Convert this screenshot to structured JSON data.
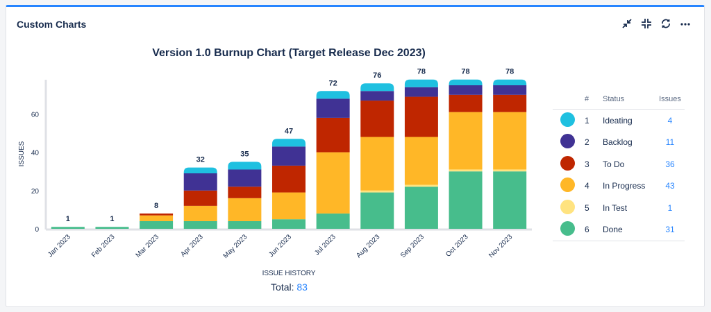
{
  "panel": {
    "title": "Custom Charts",
    "actions": [
      "collapse-icon",
      "minimize-icon",
      "refresh-icon",
      "more-icon"
    ]
  },
  "chart_data": {
    "type": "bar",
    "stacked": true,
    "title": "Version 1.0 Burnup Chart (Target Release Dec 2023)",
    "xlabel": "ISSUE HISTORY",
    "ylabel": "ISSUES",
    "ylim": [
      0,
      78
    ],
    "yticks": [
      0,
      20,
      40,
      60
    ],
    "categories": [
      "Jan 2023",
      "Feb 2023",
      "Mar 2023",
      "Apr 2023",
      "May 2023",
      "Jun 2023",
      "Jul 2023",
      "Aug 2023",
      "Sep 2023",
      "Oct 2023",
      "Nov 2023"
    ],
    "totals": [
      1,
      1,
      8,
      32,
      35,
      47,
      72,
      76,
      78,
      78,
      78
    ],
    "series": [
      {
        "name": "Done",
        "color": "#47bd8c",
        "values": [
          1,
          1,
          4,
          4,
          4,
          5,
          8,
          19,
          22,
          30,
          30
        ]
      },
      {
        "name": "In Test",
        "color": "#ffe380",
        "values": [
          0,
          0,
          0,
          0,
          0,
          0,
          0,
          1,
          1,
          1,
          1
        ]
      },
      {
        "name": "In Progress",
        "color": "#ffb727",
        "values": [
          0,
          0,
          3,
          8,
          12,
          14,
          32,
          28,
          25,
          30,
          30
        ]
      },
      {
        "name": "To Do",
        "color": "#bf2600",
        "values": [
          0,
          0,
          1,
          8,
          6,
          14,
          18,
          19,
          21,
          9,
          9
        ]
      },
      {
        "name": "Backlog",
        "color": "#403294",
        "values": [
          0,
          0,
          0,
          9,
          9,
          10,
          10,
          5,
          5,
          5,
          5
        ]
      },
      {
        "name": "Ideating",
        "color": "#1fc0e0",
        "values": [
          0,
          0,
          0,
          3,
          4,
          4,
          4,
          4,
          4,
          3,
          3
        ]
      }
    ]
  },
  "legend": {
    "headers": {
      "index": "#",
      "status": "Status",
      "issues": "Issues"
    },
    "rows": [
      {
        "index": "1",
        "status": "Ideating",
        "issues": "4",
        "color": "#1fc0e0"
      },
      {
        "index": "2",
        "status": "Backlog",
        "issues": "11",
        "color": "#403294"
      },
      {
        "index": "3",
        "status": "To Do",
        "issues": "36",
        "color": "#bf2600"
      },
      {
        "index": "4",
        "status": "In Progress",
        "issues": "43",
        "color": "#ffb727"
      },
      {
        "index": "5",
        "status": "In Test",
        "issues": "1",
        "color": "#ffe380"
      },
      {
        "index": "6",
        "status": "Done",
        "issues": "31",
        "color": "#47bd8c"
      }
    ]
  },
  "footer": {
    "total_label": "Total:",
    "total_value": "83"
  }
}
